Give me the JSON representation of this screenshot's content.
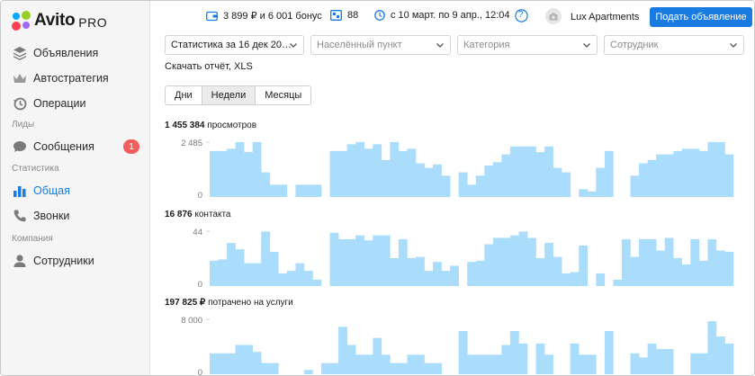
{
  "brand": {
    "name": "Avito",
    "suffix": "PRO"
  },
  "sidebar": {
    "items": [
      {
        "label": "Объявления",
        "icon": "layers-icon"
      },
      {
        "label": "Автостратегия",
        "icon": "crown-icon"
      },
      {
        "label": "Операции",
        "icon": "history-icon"
      },
      {
        "group": "Лиды"
      },
      {
        "label": "Сообщения",
        "icon": "chat-icon",
        "badge": "1"
      },
      {
        "group": "Статистика"
      },
      {
        "label": "Общая",
        "icon": "bar-chart-icon",
        "active": true
      },
      {
        "label": "Звонки",
        "icon": "phone-icon"
      },
      {
        "group": "Компания"
      },
      {
        "label": "Сотрудники",
        "icon": "user-icon"
      }
    ]
  },
  "topbar": {
    "balance": "3 899 ₽ и 6 001 бонус",
    "listings_count": "88",
    "period": "с 10 март. по 9 апр., 12:04",
    "help": "?",
    "account": "Lux Apartments",
    "post_button": "Подать объявление"
  },
  "filters": {
    "stats_period": "Статистика за 16 дек 20…",
    "city_placeholder": "Населённый пункт",
    "category_placeholder": "Категория",
    "employee_placeholder": "Сотрудник",
    "download": "Скачать отчёт, XLS"
  },
  "granularity": {
    "options": [
      "Дни",
      "Недели",
      "Месяцы"
    ],
    "selected": "Недели"
  },
  "colors": {
    "accent": "#1a7ce0",
    "bar": "#aadcfb",
    "badge": "#f25d5d"
  },
  "chart_data": [
    {
      "type": "bar",
      "title_value": "1 455 384",
      "title_text": "просмотров",
      "ylim": [
        0,
        2485
      ],
      "yticks": [
        "2 485",
        "0"
      ],
      "values": [
        2050,
        2050,
        2150,
        2450,
        2000,
        2450,
        1100,
        550,
        550,
        0,
        550,
        550,
        550,
        0,
        2050,
        2050,
        2350,
        2450,
        2150,
        2350,
        1650,
        2450,
        2050,
        2150,
        1500,
        1300,
        1450,
        950,
        0,
        1100,
        550,
        950,
        1400,
        1550,
        1900,
        2250,
        2250,
        2250,
        2000,
        2250,
        1300,
        1100,
        0,
        350,
        250,
        1300,
        2050,
        0,
        0,
        950,
        1500,
        1650,
        1900,
        1900,
        2050,
        2150,
        2150,
        2050,
        2450,
        2450,
        1900
      ]
    },
    {
      "type": "bar",
      "title_value": "16 876",
      "title_text": "контакта",
      "ylim": [
        0,
        44
      ],
      "yticks": [
        "44",
        "0"
      ],
      "values": [
        20,
        21,
        34,
        29,
        18,
        18,
        43,
        27,
        10,
        12,
        18,
        12,
        5,
        0,
        42,
        37,
        37,
        40,
        36,
        40,
        40,
        22,
        37,
        22,
        23,
        12,
        19,
        12,
        16,
        0,
        19,
        20,
        33,
        38,
        38,
        40,
        43,
        38,
        22,
        34,
        23,
        10,
        11,
        32,
        0,
        10,
        0,
        5,
        37,
        23,
        37,
        37,
        28,
        38,
        22,
        17,
        37,
        20,
        37,
        28,
        27
      ]
    },
    {
      "type": "bar",
      "title_value": "197 825 ₽",
      "title_text": "потрачено на услуги",
      "ylim": [
        0,
        8000
      ],
      "yticks": [
        "8 000",
        "0"
      ],
      "values": [
        3000,
        3000,
        3000,
        4200,
        4200,
        3200,
        1600,
        1600,
        0,
        0,
        0,
        600,
        0,
        1600,
        1600,
        6800,
        4200,
        2800,
        2800,
        5200,
        2800,
        1600,
        1600,
        2800,
        2800,
        1600,
        1600,
        0,
        0,
        6200,
        2800,
        2800,
        2800,
        2800,
        4200,
        6200,
        4400,
        0,
        4400,
        2800,
        0,
        0,
        4400,
        2800,
        2800,
        0,
        6200,
        0,
        0,
        3000,
        2400,
        4400,
        3600,
        3600,
        0,
        0,
        3000,
        3000,
        7600,
        5400,
        4400
      ]
    }
  ]
}
